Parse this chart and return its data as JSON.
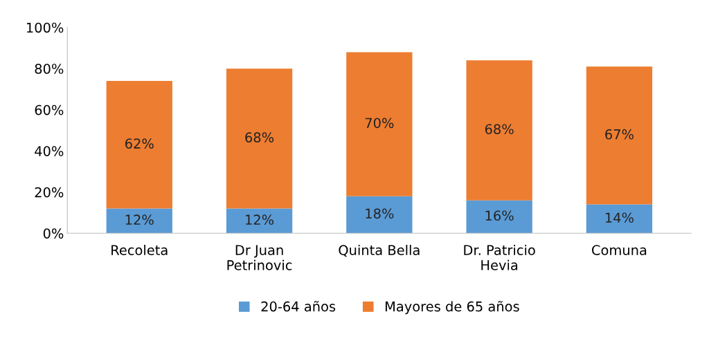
{
  "chart_data": {
    "type": "bar",
    "stacked": true,
    "categories": [
      "Recoleta",
      "Dr Juan\nPetrinovic",
      "Quinta Bella",
      "Dr. Patricio\nHevia",
      "Comuna"
    ],
    "series": [
      {
        "name": "20-64 años",
        "color": "#5b9bd5",
        "values": [
          12,
          12,
          18,
          16,
          14
        ],
        "value_labels": [
          "12%",
          "12%",
          "18%",
          "16%",
          "14%"
        ]
      },
      {
        "name": "Mayores de 65 años",
        "color": "#ed7d31",
        "values": [
          62,
          68,
          70,
          68,
          67
        ],
        "value_labels": [
          "62%",
          "68%",
          "70%",
          "68%",
          "67%"
        ]
      }
    ],
    "ylim": [
      0,
      100
    ],
    "yticks": [
      {
        "value": 0,
        "label": "0%"
      },
      {
        "value": 20,
        "label": "20%"
      },
      {
        "value": 40,
        "label": "40%"
      },
      {
        "value": 60,
        "label": "60%"
      },
      {
        "value": 80,
        "label": "80%"
      },
      {
        "value": 100,
        "label": "100%"
      }
    ],
    "grid": false,
    "legend": "bottom"
  }
}
